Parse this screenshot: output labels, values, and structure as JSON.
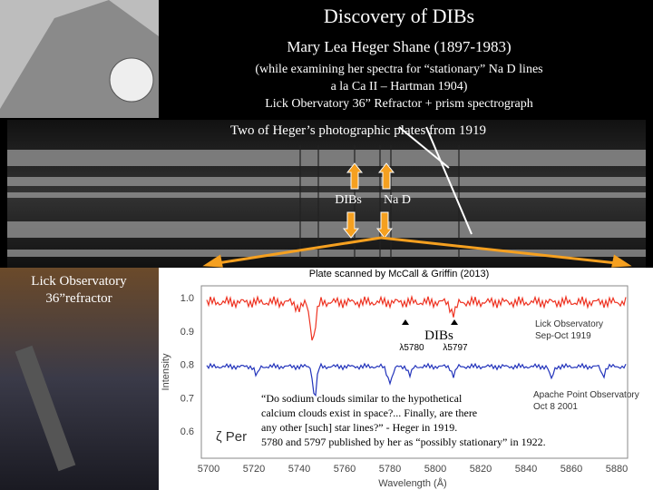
{
  "header": {
    "title": "Discovery of DIBs",
    "author": "Mary Lea Heger Shane (1897-1983)",
    "notes": [
      "(while examining her spectra for “stationary” Na D lines",
      "a la Ca II – Hartman 1904)",
      "Lick Obervatory 36” Refractor + prism spectrograph"
    ]
  },
  "plates": {
    "caption": "Two of Heger’s photographic plates from 1919",
    "labels": [
      "DIBs",
      "Na D"
    ]
  },
  "photo_caption": [
    "Lick Observatory",
    "36”refractor"
  ],
  "plot": {
    "credit": "Plate scanned by McCall & Griffin (2013)",
    "y_label": "Intensity",
    "x_label": "Wavelength (Å)",
    "yticks": [
      "1.0",
      "0.9",
      "0.8",
      "0.7",
      "0.6"
    ],
    "xticks": [
      5700,
      5720,
      5740,
      5760,
      5780,
      5800,
      5820,
      5840,
      5860,
      5880
    ],
    "dibs": "DIBs",
    "lines": [
      "λ5780",
      "λ5797"
    ],
    "star": "ζ Per",
    "lick": [
      "Lick Observatory",
      "Sep-Oct 1919"
    ],
    "apache": [
      "Apache Point Observatory",
      "Oct 8 2001"
    ],
    "quote": [
      "“Do sodium clouds similar to the hypothetical",
      "calcium clouds exist in space?... Finally, are there",
      "any other [such] star lines?” - Heger in 1919.",
      "5780 and 5797 published by her as “possibly stationary” in 1922."
    ]
  }
}
